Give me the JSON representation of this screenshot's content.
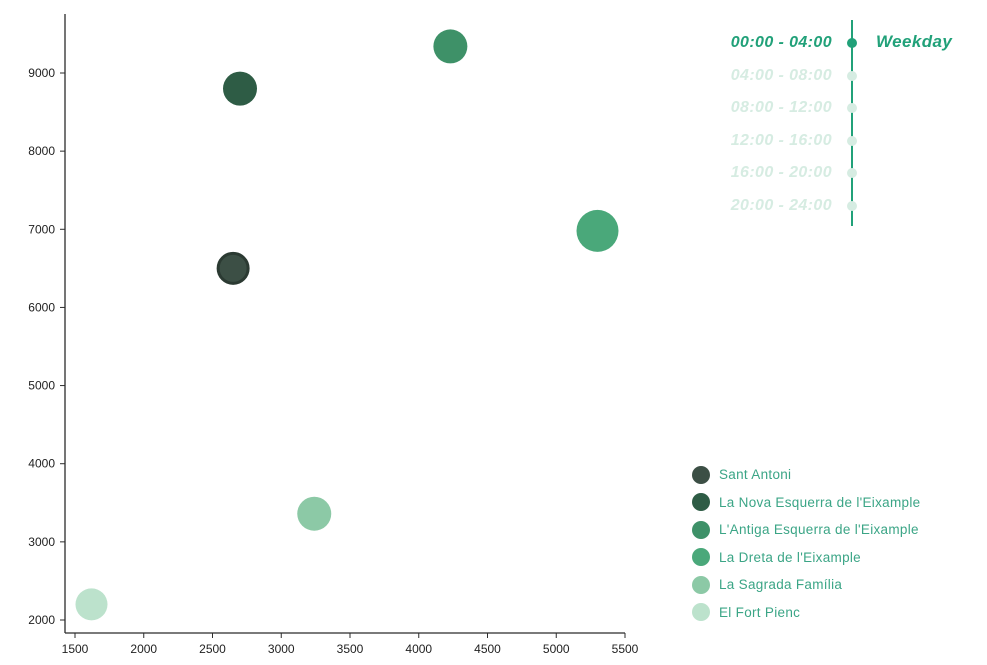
{
  "time_filter": {
    "title": "Weekday",
    "active_color": "#21a179",
    "inactive_color": "#d6ece2",
    "items": [
      {
        "label": "00:00 - 04:00",
        "active": true
      },
      {
        "label": "04:00 - 08:00",
        "active": false
      },
      {
        "label": "08:00 - 12:00",
        "active": false
      },
      {
        "label": "12:00 - 16:00",
        "active": false
      },
      {
        "label": "16:00 - 20:00",
        "active": false
      },
      {
        "label": "20:00 - 24:00",
        "active": false
      }
    ]
  },
  "legend": {
    "label_color": "#3ba586",
    "items": [
      {
        "label": "Sant Antoni",
        "color": "#3c4f45"
      },
      {
        "label": "La Nova Esquerra de l'Eixample",
        "color": "#2e5c45"
      },
      {
        "label": "L'Antiga Esquerra de l'Eixample",
        "color": "#3e9168"
      },
      {
        "label": "La Dreta de l'Eixample",
        "color": "#4aa87a"
      },
      {
        "label": "La Sagrada Família",
        "color": "#8cc9a6"
      },
      {
        "label": "El Fort Pienc",
        "color": "#bce2cc"
      }
    ]
  },
  "chart_data": {
    "type": "scatter",
    "title": "",
    "xlabel": "",
    "ylabel": "",
    "grid": false,
    "legend_position": "bottom-right",
    "xlim": [
      1500,
      5500
    ],
    "ylim": [
      2000,
      9000
    ],
    "xticks": [
      1500,
      2000,
      2500,
      3000,
      3500,
      4000,
      4500,
      5000,
      5500
    ],
    "yticks": [
      2000,
      3000,
      4000,
      5000,
      6000,
      7000,
      8000,
      9000
    ],
    "points": [
      {
        "name": "Sant Antoni",
        "x": 2650,
        "y": 6500,
        "r": 15,
        "color": "#3c4f45",
        "stroke": "#2b3a32"
      },
      {
        "name": "La Nova Esquerra de l'Eixample",
        "x": 2700,
        "y": 8800,
        "r": 17,
        "color": "#2e5c45"
      },
      {
        "name": "L'Antiga Esquerra de l'Eixample",
        "x": 4230,
        "y": 9340,
        "r": 17,
        "color": "#3e9168"
      },
      {
        "name": "La Dreta de l'Eixample",
        "x": 5300,
        "y": 6980,
        "r": 21,
        "color": "#4aa87a"
      },
      {
        "name": "La Sagrada Família",
        "x": 3240,
        "y": 3360,
        "r": 17,
        "color": "#8cc9a6"
      },
      {
        "name": "El Fort Pienc",
        "x": 1620,
        "y": 2200,
        "r": 16,
        "color": "#bce2cc"
      }
    ]
  }
}
